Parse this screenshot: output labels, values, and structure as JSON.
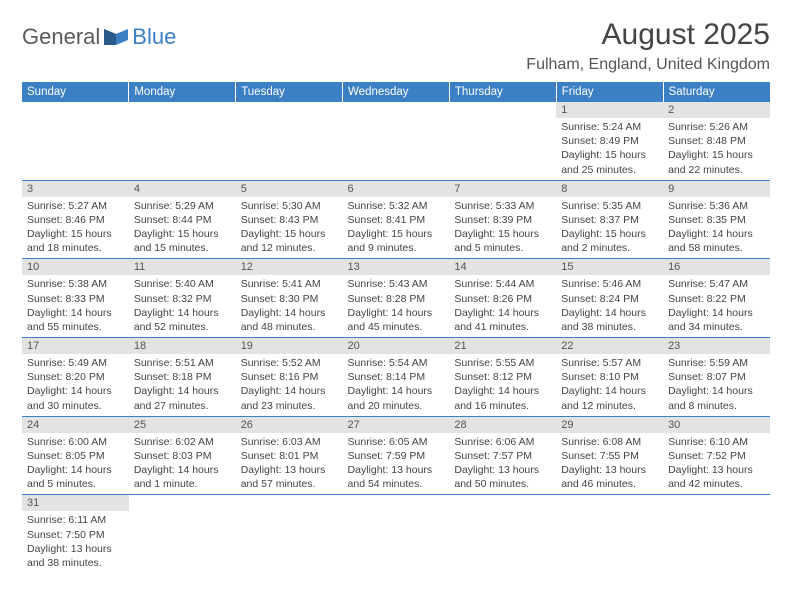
{
  "logo": {
    "general": "General",
    "blue": "Blue"
  },
  "title": "August 2025",
  "location": "Fulham, England, United Kingdom",
  "colors": {
    "header_bg": "#3b7fc4",
    "daynum_bg": "#e3e3e3",
    "text": "#444",
    "rule": "#3b7fc4"
  },
  "day_headers": [
    "Sunday",
    "Monday",
    "Tuesday",
    "Wednesday",
    "Thursday",
    "Friday",
    "Saturday"
  ],
  "weeks": [
    [
      null,
      null,
      null,
      null,
      null,
      {
        "n": "1",
        "sr": "Sunrise: 5:24 AM",
        "ss": "Sunset: 8:49 PM",
        "dl": "Daylight: 15 hours and 25 minutes."
      },
      {
        "n": "2",
        "sr": "Sunrise: 5:26 AM",
        "ss": "Sunset: 8:48 PM",
        "dl": "Daylight: 15 hours and 22 minutes."
      }
    ],
    [
      {
        "n": "3",
        "sr": "Sunrise: 5:27 AM",
        "ss": "Sunset: 8:46 PM",
        "dl": "Daylight: 15 hours and 18 minutes."
      },
      {
        "n": "4",
        "sr": "Sunrise: 5:29 AM",
        "ss": "Sunset: 8:44 PM",
        "dl": "Daylight: 15 hours and 15 minutes."
      },
      {
        "n": "5",
        "sr": "Sunrise: 5:30 AM",
        "ss": "Sunset: 8:43 PM",
        "dl": "Daylight: 15 hours and 12 minutes."
      },
      {
        "n": "6",
        "sr": "Sunrise: 5:32 AM",
        "ss": "Sunset: 8:41 PM",
        "dl": "Daylight: 15 hours and 9 minutes."
      },
      {
        "n": "7",
        "sr": "Sunrise: 5:33 AM",
        "ss": "Sunset: 8:39 PM",
        "dl": "Daylight: 15 hours and 5 minutes."
      },
      {
        "n": "8",
        "sr": "Sunrise: 5:35 AM",
        "ss": "Sunset: 8:37 PM",
        "dl": "Daylight: 15 hours and 2 minutes."
      },
      {
        "n": "9",
        "sr": "Sunrise: 5:36 AM",
        "ss": "Sunset: 8:35 PM",
        "dl": "Daylight: 14 hours and 58 minutes."
      }
    ],
    [
      {
        "n": "10",
        "sr": "Sunrise: 5:38 AM",
        "ss": "Sunset: 8:33 PM",
        "dl": "Daylight: 14 hours and 55 minutes."
      },
      {
        "n": "11",
        "sr": "Sunrise: 5:40 AM",
        "ss": "Sunset: 8:32 PM",
        "dl": "Daylight: 14 hours and 52 minutes."
      },
      {
        "n": "12",
        "sr": "Sunrise: 5:41 AM",
        "ss": "Sunset: 8:30 PM",
        "dl": "Daylight: 14 hours and 48 minutes."
      },
      {
        "n": "13",
        "sr": "Sunrise: 5:43 AM",
        "ss": "Sunset: 8:28 PM",
        "dl": "Daylight: 14 hours and 45 minutes."
      },
      {
        "n": "14",
        "sr": "Sunrise: 5:44 AM",
        "ss": "Sunset: 8:26 PM",
        "dl": "Daylight: 14 hours and 41 minutes."
      },
      {
        "n": "15",
        "sr": "Sunrise: 5:46 AM",
        "ss": "Sunset: 8:24 PM",
        "dl": "Daylight: 14 hours and 38 minutes."
      },
      {
        "n": "16",
        "sr": "Sunrise: 5:47 AM",
        "ss": "Sunset: 8:22 PM",
        "dl": "Daylight: 14 hours and 34 minutes."
      }
    ],
    [
      {
        "n": "17",
        "sr": "Sunrise: 5:49 AM",
        "ss": "Sunset: 8:20 PM",
        "dl": "Daylight: 14 hours and 30 minutes."
      },
      {
        "n": "18",
        "sr": "Sunrise: 5:51 AM",
        "ss": "Sunset: 8:18 PM",
        "dl": "Daylight: 14 hours and 27 minutes."
      },
      {
        "n": "19",
        "sr": "Sunrise: 5:52 AM",
        "ss": "Sunset: 8:16 PM",
        "dl": "Daylight: 14 hours and 23 minutes."
      },
      {
        "n": "20",
        "sr": "Sunrise: 5:54 AM",
        "ss": "Sunset: 8:14 PM",
        "dl": "Daylight: 14 hours and 20 minutes."
      },
      {
        "n": "21",
        "sr": "Sunrise: 5:55 AM",
        "ss": "Sunset: 8:12 PM",
        "dl": "Daylight: 14 hours and 16 minutes."
      },
      {
        "n": "22",
        "sr": "Sunrise: 5:57 AM",
        "ss": "Sunset: 8:10 PM",
        "dl": "Daylight: 14 hours and 12 minutes."
      },
      {
        "n": "23",
        "sr": "Sunrise: 5:59 AM",
        "ss": "Sunset: 8:07 PM",
        "dl": "Daylight: 14 hours and 8 minutes."
      }
    ],
    [
      {
        "n": "24",
        "sr": "Sunrise: 6:00 AM",
        "ss": "Sunset: 8:05 PM",
        "dl": "Daylight: 14 hours and 5 minutes."
      },
      {
        "n": "25",
        "sr": "Sunrise: 6:02 AM",
        "ss": "Sunset: 8:03 PM",
        "dl": "Daylight: 14 hours and 1 minute."
      },
      {
        "n": "26",
        "sr": "Sunrise: 6:03 AM",
        "ss": "Sunset: 8:01 PM",
        "dl": "Daylight: 13 hours and 57 minutes."
      },
      {
        "n": "27",
        "sr": "Sunrise: 6:05 AM",
        "ss": "Sunset: 7:59 PM",
        "dl": "Daylight: 13 hours and 54 minutes."
      },
      {
        "n": "28",
        "sr": "Sunrise: 6:06 AM",
        "ss": "Sunset: 7:57 PM",
        "dl": "Daylight: 13 hours and 50 minutes."
      },
      {
        "n": "29",
        "sr": "Sunrise: 6:08 AM",
        "ss": "Sunset: 7:55 PM",
        "dl": "Daylight: 13 hours and 46 minutes."
      },
      {
        "n": "30",
        "sr": "Sunrise: 6:10 AM",
        "ss": "Sunset: 7:52 PM",
        "dl": "Daylight: 13 hours and 42 minutes."
      }
    ],
    [
      {
        "n": "31",
        "sr": "Sunrise: 6:11 AM",
        "ss": "Sunset: 7:50 PM",
        "dl": "Daylight: 13 hours and 38 minutes."
      },
      null,
      null,
      null,
      null,
      null,
      null
    ]
  ]
}
